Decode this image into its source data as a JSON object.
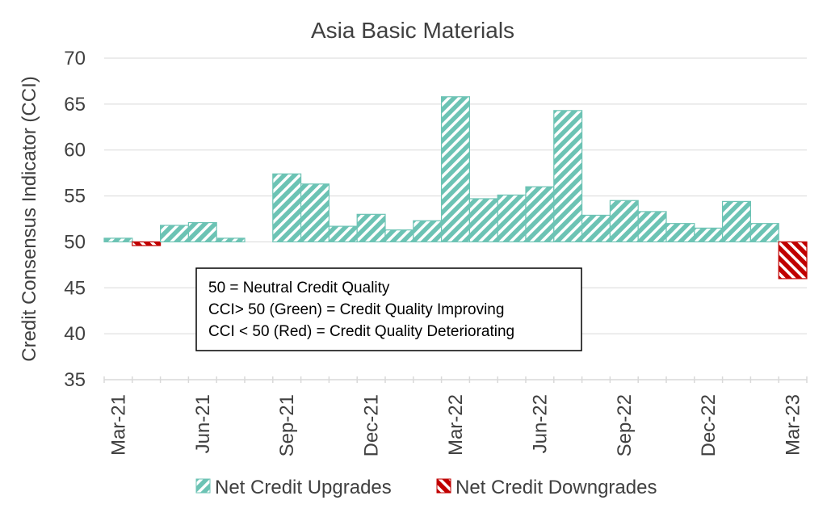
{
  "chart_data": {
    "type": "bar",
    "title": "Asia Basic Materials",
    "ylabel": "Credit Consensus Indicator (CCI)",
    "xlabel": "",
    "ylim": [
      35,
      70
    ],
    "yticks": [
      35,
      40,
      45,
      50,
      55,
      60,
      65,
      70
    ],
    "baseline": 50,
    "grid": true,
    "categories": [
      "Mar-21",
      "Apr-21",
      "May-21",
      "Jun-21",
      "Jul-21",
      "Aug-21",
      "Sep-21",
      "Oct-21",
      "Nov-21",
      "Dec-21",
      "Jan-22",
      "Feb-22",
      "Mar-22",
      "Apr-22",
      "May-22",
      "Jun-22",
      "Jul-22",
      "Aug-22",
      "Sep-22",
      "Oct-22",
      "Nov-22",
      "Dec-22",
      "Jan-23",
      "Feb-23",
      "Mar-23"
    ],
    "xtick_labels": [
      "Mar-21",
      "Jun-21",
      "Sep-21",
      "Dec-21",
      "Mar-22",
      "Jun-22",
      "Sep-22",
      "Dec-22",
      "Mar-23"
    ],
    "values": [
      50.4,
      49.6,
      51.8,
      52.1,
      50.4,
      null,
      57.4,
      56.3,
      51.7,
      53.0,
      51.3,
      52.3,
      65.8,
      54.7,
      55.1,
      56.0,
      64.3,
      52.9,
      54.5,
      53.3,
      52.0,
      51.5,
      54.4,
      52.0,
      46.0
    ],
    "series": [
      {
        "name": "Net Credit Upgrades",
        "color": "#6cc3b4"
      },
      {
        "name": "Net Credit Downgrades",
        "color": "#c00000"
      }
    ],
    "legend_position": "bottom",
    "annotation": {
      "lines": [
        "50 = Neutral Credit Quality",
        "CCI> 50 (Green) = Credit Quality Improving",
        "CCI < 50 (Red) = Credit Quality Deteriorating"
      ]
    }
  }
}
